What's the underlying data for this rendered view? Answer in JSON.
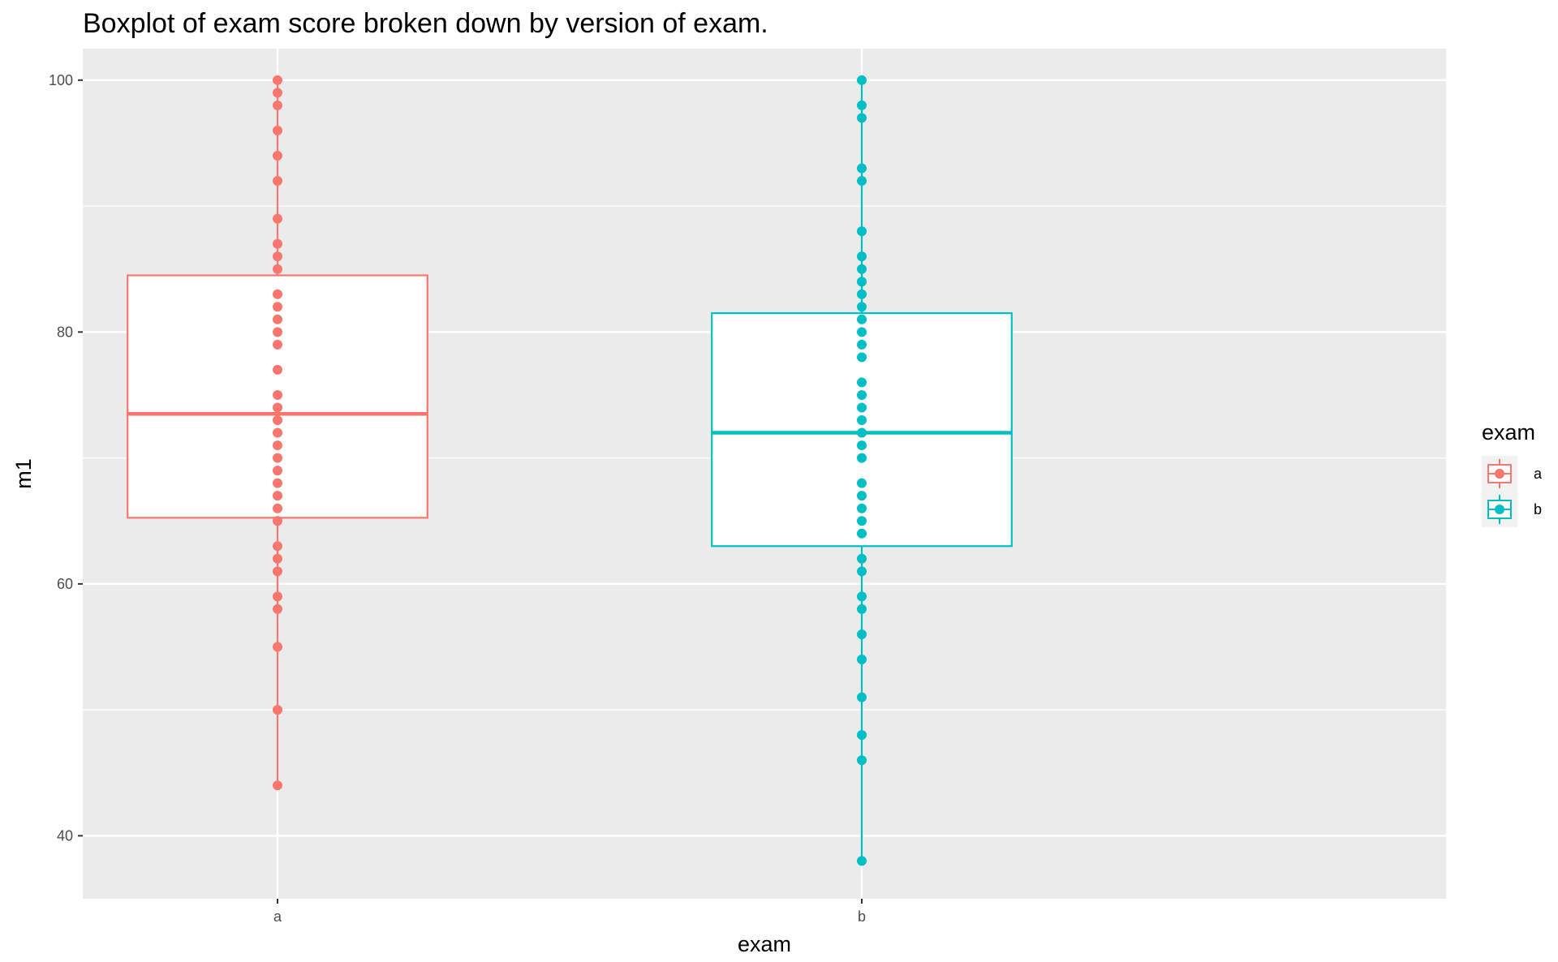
{
  "chart_data": {
    "type": "boxplot",
    "title": "Boxplot of exam score broken down by version of exam.",
    "xlabel": "exam",
    "ylabel": "m1",
    "ylim": [
      35,
      102.5
    ],
    "y_ticks": [
      "40",
      "60",
      "80",
      "100"
    ],
    "categories": [
      "a",
      "b"
    ],
    "grid": true,
    "legend": {
      "title": "exam",
      "position": "right",
      "entries": [
        "a",
        "b"
      ]
    },
    "colors": {
      "a": "#F8766D",
      "b": "#00BFC4",
      "panel": "#EBEBEB",
      "grid": "#FFFFFF"
    },
    "boxes": [
      {
        "category": "a",
        "q1": 65.25,
        "median": 73.5,
        "q3": 84.5,
        "whisker_low": 44,
        "whisker_high": 100
      },
      {
        "category": "b",
        "q1": 63,
        "median": 72,
        "q3": 81.5,
        "whisker_low": 38,
        "whisker_high": 100
      }
    ],
    "points": [
      {
        "category": "a",
        "values": [
          100,
          99,
          98,
          96,
          94,
          92,
          89,
          87,
          86,
          85,
          83,
          82,
          81,
          80,
          79,
          77,
          75,
          74,
          73,
          72,
          71,
          70,
          69,
          68,
          67,
          66,
          65,
          63,
          62,
          61,
          59,
          58,
          55,
          50,
          44
        ]
      },
      {
        "category": "b",
        "values": [
          100,
          98,
          97,
          93,
          92,
          88,
          86,
          85,
          84,
          83,
          82,
          81,
          80,
          79,
          78,
          76,
          75,
          74,
          73,
          72,
          71,
          70,
          68,
          67,
          66,
          65,
          64,
          62,
          61,
          59,
          58,
          56,
          54,
          51,
          48,
          46,
          38
        ]
      }
    ]
  }
}
